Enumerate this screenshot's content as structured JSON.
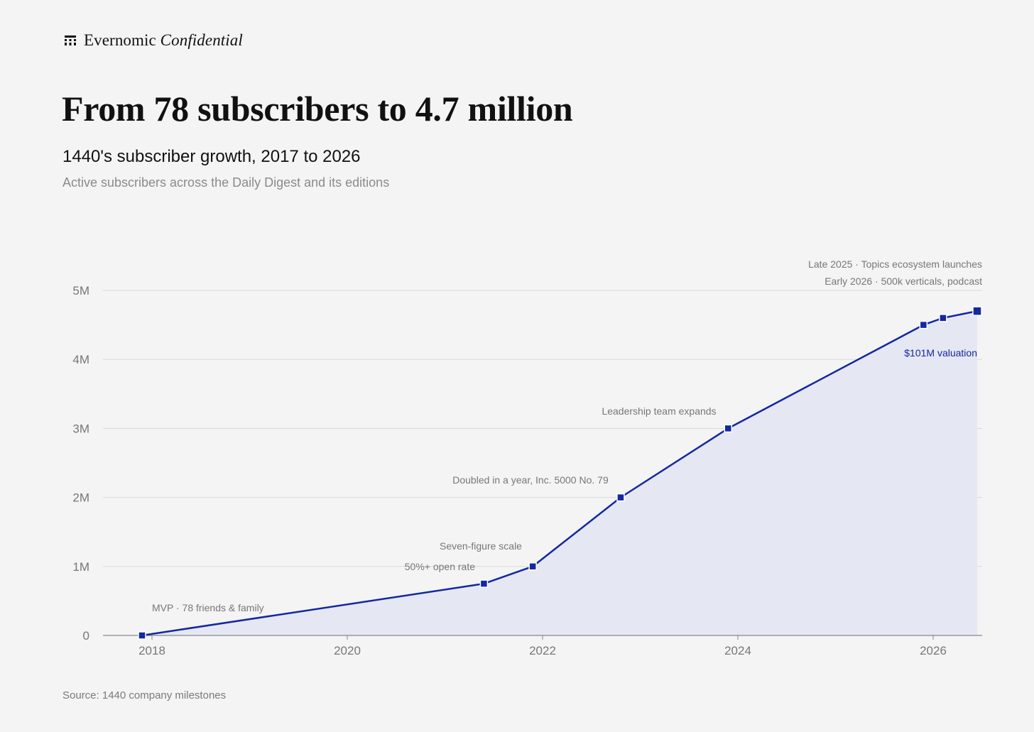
{
  "brand": {
    "name": "Evernomic",
    "suffix": "Confidential",
    "icon": "brand-grid-icon"
  },
  "title": "From 78 subscribers to 4.7 million",
  "subtitle": "1440's subscriber growth, 2017 to 2026",
  "description": "Active subscribers across the Daily Digest and its editions",
  "source": "Source: 1440 company milestones",
  "chart_data": {
    "type": "area",
    "title": "From 78 subscribers to 4.7 million",
    "subtitle": "1440's subscriber growth, 2017 to 2026",
    "xlabel": "",
    "ylabel": "",
    "xlim": [
      2017.6,
      2026.5
    ],
    "ylim": [
      0,
      5000000
    ],
    "grid": true,
    "color": "#1428a0",
    "fill_color": "#e5e7f3",
    "x_ticks": [
      2018,
      2020,
      2022,
      2024,
      2026
    ],
    "x_tick_labels": [
      "2018",
      "2020",
      "2022",
      "2024",
      "2026"
    ],
    "y_ticks": [
      0,
      1000000,
      2000000,
      3000000,
      4000000,
      5000000
    ],
    "y_tick_labels": [
      "0",
      "1M",
      "2M",
      "3M",
      "4M",
      "5M"
    ],
    "series": [
      {
        "points": [
          {
            "x": 2017.9,
            "y": 78
          },
          {
            "x": 2021.4,
            "y": 750000
          },
          {
            "x": 2021.9,
            "y": 1000000
          },
          {
            "x": 2022.8,
            "y": 2000000
          },
          {
            "x": 2023.9,
            "y": 3000000
          },
          {
            "x": 2025.9,
            "y": 4500000
          },
          {
            "x": 2026.1,
            "y": 4600000
          },
          {
            "x": 2026.45,
            "y": 4700000
          }
        ]
      }
    ],
    "annotations": [
      {
        "text": "MVP · 78 friends & family",
        "x": 2017.9,
        "y": 78,
        "style": "muted"
      },
      {
        "text": "50%+ open rate",
        "x": 2021.4,
        "y": 750000,
        "style": "muted"
      },
      {
        "text": "Seven-figure scale",
        "x": 2021.9,
        "y": 1000000,
        "style": "muted"
      },
      {
        "text": "Doubled in a year, Inc. 5000 No. 79",
        "x": 2022.8,
        "y": 2000000,
        "style": "muted"
      },
      {
        "text": "Leadership team expands",
        "x": 2023.9,
        "y": 3000000,
        "style": "muted"
      },
      {
        "text": "$101M valuation",
        "x": 2025.9,
        "y": 4500000,
        "style": "accent"
      },
      {
        "text": "Late 2025 · Topics ecosystem launches",
        "x": 2026.1,
        "y": 4600000,
        "style": "muted"
      },
      {
        "text": "Early 2026 · 500k verticals, podcast",
        "x": 2026.45,
        "y": 4700000,
        "style": "muted"
      }
    ]
  }
}
